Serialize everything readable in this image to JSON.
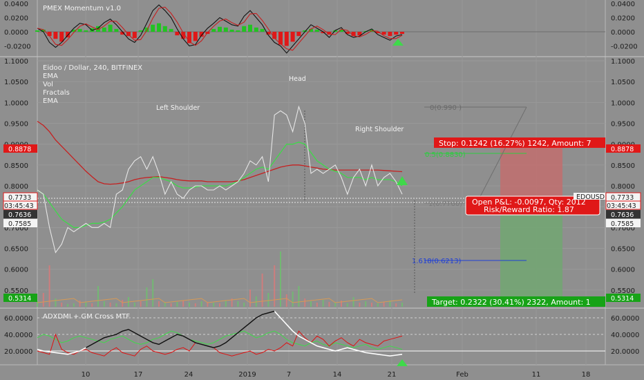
{
  "colors": {
    "background": "#8f8f8f",
    "grid": "#9b9b9b",
    "price_line": "#e6e6e6",
    "ema_red": "#c62020",
    "ema_green": "#3fd94a",
    "hist_green": "#22c322",
    "hist_red": "#e01818",
    "stop_box": "#e01818",
    "target_box": "#17a317",
    "fib_green": "#2ecc40",
    "fib_blue": "#1f3fd6",
    "fib_grey": "#6e6e6e",
    "adx_black": "#111111",
    "adx_white": "#ffffff",
    "adx_red": "#e01010",
    "adx_green": "#3fd94a"
  },
  "momentum_panel": {
    "title": "PMEX Momentum v1.0",
    "y_ticks": [
      "0.0400",
      "0.0200",
      "0.0000",
      "-0.0200"
    ]
  },
  "main_panel": {
    "title": "Eidoo / Dollar, 240, BITFINEX",
    "legend": [
      "EMA",
      "Vol",
      "Fractals",
      "EMA"
    ],
    "y_ticks": [
      "1.1000",
      "1.0500",
      "1.0000",
      "0.9500",
      "0.9000",
      "0.8500",
      "0.8000",
      "0.7500",
      "0.7000",
      "0.6500",
      "0.6000",
      "0.5500"
    ],
    "annotations": {
      "head": "Head",
      "left_shoulder": "Left Shoulder",
      "right_shoulder": "Right Shoulder"
    },
    "price_tags": {
      "stop_level": "0.8878",
      "last_price": "0.7733",
      "countdown": "03:45:43",
      "level_a": "0.7636",
      "level_b": "0.7585",
      "target_level": "0.5314",
      "symbol_tag": "EDOUSD"
    },
    "fib_labels": {
      "level_0": "0(0.990 )",
      "level_05": "0.5(0.8830)",
      "level_1": "1(0.7760)",
      "level_1618": "1.618(0.6213)"
    },
    "stop_box": "Stop: 0.1242 (16.27%) 1242, Amount: 7",
    "target_box": "Target: 0.2322 (30.41%) 2322, Amount: 1",
    "pnl_line1": "Open P&L: -0.0097, Qty: 2012",
    "pnl_line2": "Risk/Reward Ratio: 1.87"
  },
  "adx_panel": {
    "title": "ADXDMI + GM Cross MTF",
    "y_ticks": [
      "60.0000",
      "40.0000",
      "20.0000"
    ]
  },
  "x_axis": {
    "ticks": [
      "10",
      "17",
      "24",
      "2019",
      "7",
      "14",
      "21",
      "Feb",
      "11",
      "18"
    ]
  },
  "chart_data": {
    "type": "line",
    "title": "Eidoo / Dollar, 240, BITFINEX",
    "ylim": [
      0.53,
      1.1
    ],
    "series": [
      {
        "name": "",
        "values": [
          0.79,
          0.78,
          0.7,
          0.64,
          0.66,
          0.7,
          0.69,
          0.7,
          0.71,
          0.7,
          0.7,
          0.71,
          0.7,
          0.78,
          0.79,
          0.84,
          0.86,
          0.87,
          0.84,
          0.87,
          0.83,
          0.78,
          0.81,
          0.78,
          0.77,
          0.79,
          0.8,
          0.8,
          0.79,
          0.79,
          0.8,
          0.79,
          0.8,
          0.81,
          0.83,
          0.86,
          0.85,
          0.87,
          0.81,
          0.97,
          0.98,
          0.97,
          0.93,
          0.99,
          0.95,
          0.83,
          0.84,
          0.83,
          0.84,
          0.85,
          0.82,
          0.78,
          0.82,
          0.84,
          0.8,
          0.85,
          0.8,
          0.82,
          0.83,
          0.81,
          0.78
        ]
      },
      {
        "name": "EMA",
        "values": [
          0.955,
          0.945,
          0.93,
          0.91,
          0.895,
          0.88,
          0.865,
          0.85,
          0.835,
          0.822,
          0.81,
          0.805,
          0.804,
          0.805,
          0.807,
          0.81,
          0.815,
          0.818,
          0.82,
          0.821,
          0.822,
          0.82,
          0.818,
          0.815,
          0.813,
          0.812,
          0.812,
          0.812,
          0.81,
          0.81,
          0.81,
          0.81,
          0.81,
          0.812,
          0.815,
          0.82,
          0.825,
          0.83,
          0.835,
          0.84,
          0.845,
          0.848,
          0.85,
          0.85,
          0.848,
          0.845,
          0.843,
          0.84,
          0.839,
          0.838,
          0.838,
          0.838,
          0.838,
          0.838,
          0.838,
          0.838,
          0.838,
          0.837,
          0.836,
          0.835,
          0.834
        ]
      },
      {
        "name": "EMA",
        "values": [
          0.79,
          0.78,
          0.76,
          0.74,
          0.72,
          0.71,
          0.7,
          0.7,
          0.705,
          0.71,
          0.71,
          0.713,
          0.72,
          0.735,
          0.75,
          0.77,
          0.79,
          0.8,
          0.81,
          0.82,
          0.82,
          0.815,
          0.81,
          0.8,
          0.795,
          0.795,
          0.797,
          0.8,
          0.8,
          0.8,
          0.8,
          0.8,
          0.805,
          0.81,
          0.82,
          0.83,
          0.84,
          0.845,
          0.84,
          0.86,
          0.88,
          0.9,
          0.9,
          0.905,
          0.9,
          0.88,
          0.86,
          0.85,
          0.84,
          0.835,
          0.83,
          0.82,
          0.82,
          0.82,
          0.815,
          0.82,
          0.815,
          0.815,
          0.815,
          0.81,
          0.8
        ]
      }
    ]
  }
}
